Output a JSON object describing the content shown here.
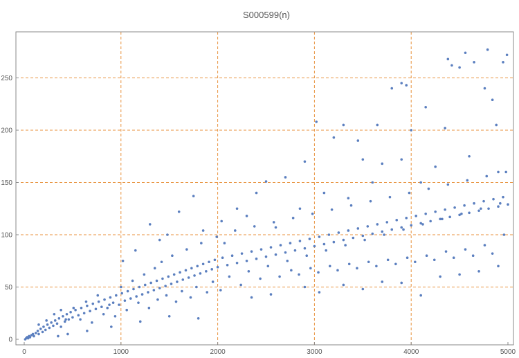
{
  "chart_data": {
    "type": "scatter",
    "title": "S000599(n)",
    "xlabel": "",
    "ylabel": "",
    "xlim": [
      0,
      5000
    ],
    "ylim": [
      0,
      280
    ],
    "x_ticks": [
      0,
      1000,
      2000,
      3000,
      4000,
      5000
    ],
    "y_ticks": [
      0,
      50,
      100,
      150,
      200,
      250
    ],
    "x_tick_labels": [
      "0",
      "1000",
      "2000",
      "3000",
      "4000",
      "5000"
    ],
    "y_tick_labels": [
      "0",
      "50",
      "100",
      "150",
      "200",
      "250"
    ],
    "grid": true,
    "grid_x": [
      1000,
      2000,
      3000,
      4000
    ],
    "grid_y": [
      50,
      100,
      150,
      200,
      250
    ],
    "colors": {
      "points": "#5b7fbf",
      "grid": "#e8923c",
      "axis": "#8a8a8a",
      "text": "#555555"
    },
    "series": [
      {
        "values": [
          [
            10,
            0
          ],
          [
            20,
            1
          ],
          [
            30,
            2
          ],
          [
            40,
            1
          ],
          [
            50,
            3
          ],
          [
            60,
            2
          ],
          [
            75,
            4
          ],
          [
            90,
            5
          ],
          [
            100,
            3
          ],
          [
            120,
            6
          ],
          [
            140,
            8
          ],
          [
            150,
            5
          ],
          [
            170,
            10
          ],
          [
            190,
            7
          ],
          [
            200,
            12
          ],
          [
            220,
            9
          ],
          [
            240,
            14
          ],
          [
            260,
            11
          ],
          [
            280,
            16
          ],
          [
            300,
            13
          ],
          [
            320,
            18
          ],
          [
            340,
            15
          ],
          [
            360,
            20
          ],
          [
            380,
            12
          ],
          [
            400,
            22
          ],
          [
            420,
            17
          ],
          [
            440,
            24
          ],
          [
            460,
            19
          ],
          [
            480,
            26
          ],
          [
            500,
            21
          ],
          [
            530,
            28
          ],
          [
            560,
            23
          ],
          [
            590,
            30
          ],
          [
            620,
            25
          ],
          [
            650,
            32
          ],
          [
            680,
            27
          ],
          [
            710,
            34
          ],
          [
            740,
            29
          ],
          [
            770,
            36
          ],
          [
            800,
            31
          ],
          [
            830,
            38
          ],
          [
            860,
            30
          ],
          [
            890,
            40
          ],
          [
            920,
            35
          ],
          [
            950,
            42
          ],
          [
            980,
            33
          ],
          [
            1010,
            44
          ],
          [
            1040,
            37
          ],
          [
            1070,
            46
          ],
          [
            1100,
            39
          ],
          [
            1130,
            48
          ],
          [
            1160,
            41
          ],
          [
            1190,
            50
          ],
          [
            1220,
            43
          ],
          [
            1250,
            52
          ],
          [
            1280,
            45
          ],
          [
            1310,
            54
          ],
          [
            1340,
            47
          ],
          [
            1370,
            56
          ],
          [
            1400,
            49
          ],
          [
            1430,
            58
          ],
          [
            1460,
            51
          ],
          [
            1490,
            60
          ],
          [
            1520,
            53
          ],
          [
            1550,
            62
          ],
          [
            1580,
            55
          ],
          [
            1610,
            64
          ],
          [
            1640,
            57
          ],
          [
            1670,
            66
          ],
          [
            1700,
            59
          ],
          [
            1730,
            68
          ],
          [
            1760,
            61
          ],
          [
            1790,
            70
          ],
          [
            1820,
            63
          ],
          [
            1850,
            72
          ],
          [
            1880,
            65
          ],
          [
            1910,
            74
          ],
          [
            1940,
            67
          ],
          [
            1970,
            76
          ],
          [
            2000,
            69
          ],
          [
            2050,
            78
          ],
          [
            2100,
            71
          ],
          [
            2150,
            80
          ],
          [
            2200,
            73
          ],
          [
            2250,
            82
          ],
          [
            2300,
            75
          ],
          [
            2350,
            84
          ],
          [
            2400,
            77
          ],
          [
            2450,
            86
          ],
          [
            2500,
            79
          ],
          [
            2550,
            88
          ],
          [
            2600,
            81
          ],
          [
            2650,
            90
          ],
          [
            2700,
            83
          ],
          [
            2750,
            92
          ],
          [
            2800,
            85
          ],
          [
            2850,
            94
          ],
          [
            2900,
            87
          ],
          [
            2950,
            96
          ],
          [
            3000,
            89
          ],
          [
            3050,
            98
          ],
          [
            3100,
            91
          ],
          [
            3150,
            100
          ],
          [
            3200,
            93
          ],
          [
            3250,
            102
          ],
          [
            3300,
            95
          ],
          [
            3350,
            104
          ],
          [
            3400,
            97
          ],
          [
            3450,
            106
          ],
          [
            3500,
            99
          ],
          [
            3550,
            108
          ],
          [
            3600,
            101
          ],
          [
            3650,
            110
          ],
          [
            3700,
            103
          ],
          [
            3750,
            112
          ],
          [
            3800,
            105
          ],
          [
            3850,
            114
          ],
          [
            3900,
            107
          ],
          [
            3950,
            116
          ],
          [
            4000,
            109
          ],
          [
            4050,
            118
          ],
          [
            4100,
            111
          ],
          [
            4150,
            120
          ],
          [
            4200,
            113
          ],
          [
            4250,
            122
          ],
          [
            4300,
            115
          ],
          [
            4350,
            124
          ],
          [
            4400,
            117
          ],
          [
            4450,
            126
          ],
          [
            4500,
            119
          ],
          [
            4550,
            128
          ],
          [
            4600,
            121
          ],
          [
            4650,
            130
          ],
          [
            4700,
            123
          ],
          [
            4750,
            132
          ],
          [
            4800,
            125
          ],
          [
            4850,
            134
          ],
          [
            4900,
            127
          ],
          [
            4950,
            136
          ],
          [
            5000,
            129
          ],
          [
            1020,
            75
          ],
          [
            1150,
            85
          ],
          [
            1400,
            95
          ],
          [
            1600,
            122
          ],
          [
            1750,
            137
          ],
          [
            2040,
            113
          ],
          [
            2200,
            125
          ],
          [
            2400,
            140
          ],
          [
            2500,
            151
          ],
          [
            2700,
            155
          ],
          [
            2900,
            170
          ],
          [
            3020,
            208
          ],
          [
            3200,
            193
          ],
          [
            3300,
            205
          ],
          [
            3450,
            190
          ],
          [
            3500,
            172
          ],
          [
            3650,
            205
          ],
          [
            3800,
            240
          ],
          [
            3900,
            245
          ],
          [
            3950,
            243
          ],
          [
            4000,
            200
          ],
          [
            4150,
            222
          ],
          [
            4350,
            202
          ],
          [
            4380,
            268
          ],
          [
            4420,
            262
          ],
          [
            4500,
            260
          ],
          [
            4560,
            274
          ],
          [
            4650,
            265
          ],
          [
            4760,
            240
          ],
          [
            4790,
            277
          ],
          [
            4840,
            229
          ],
          [
            4880,
            205
          ],
          [
            4950,
            265
          ],
          [
            4990,
            272
          ],
          [
            1300,
            110
          ],
          [
            1480,
            100
          ],
          [
            1850,
            104
          ],
          [
            2070,
            92
          ],
          [
            2300,
            118
          ],
          [
            2600,
            107
          ],
          [
            2850,
            125
          ],
          [
            3100,
            140
          ],
          [
            3350,
            135
          ],
          [
            3600,
            150
          ],
          [
            3700,
            168
          ],
          [
            3900,
            172
          ],
          [
            4100,
            150
          ],
          [
            4250,
            165
          ],
          [
            4600,
            175
          ],
          [
            4900,
            160
          ],
          [
            2350,
            40
          ],
          [
            2550,
            43
          ],
          [
            2900,
            50
          ],
          [
            3050,
            45
          ],
          [
            3300,
            52
          ],
          [
            3500,
            48
          ],
          [
            3700,
            55
          ],
          [
            3900,
            54
          ],
          [
            4100,
            42
          ],
          [
            4300,
            60
          ],
          [
            4500,
            62
          ],
          [
            4700,
            65
          ],
          [
            4900,
            70
          ],
          [
            1800,
            20
          ],
          [
            1500,
            22
          ],
          [
            1200,
            17
          ],
          [
            900,
            12
          ],
          [
            650,
            8
          ],
          [
            450,
            5
          ],
          [
            350,
            3
          ],
          [
            150,
            14
          ],
          [
            230,
            18
          ],
          [
            310,
            24
          ],
          [
            380,
            28
          ],
          [
            430,
            19
          ],
          [
            510,
            30
          ],
          [
            580,
            19
          ],
          [
            640,
            36
          ],
          [
            700,
            16
          ],
          [
            760,
            42
          ],
          [
            820,
            24
          ],
          [
            880,
            33
          ],
          [
            940,
            22
          ],
          [
            1000,
            50
          ],
          [
            1060,
            28
          ],
          [
            1120,
            56
          ],
          [
            1180,
            35
          ],
          [
            1240,
            62
          ],
          [
            1290,
            30
          ],
          [
            1350,
            68
          ],
          [
            1380,
            38
          ],
          [
            1420,
            74
          ],
          [
            1470,
            42
          ],
          [
            1530,
            80
          ],
          [
            1570,
            36
          ],
          [
            1630,
            46
          ],
          [
            1680,
            86
          ],
          [
            1720,
            40
          ],
          [
            1780,
            50
          ],
          [
            1830,
            92
          ],
          [
            1890,
            45
          ],
          [
            1950,
            55
          ],
          [
            1990,
            98
          ],
          [
            2030,
            47
          ],
          [
            2120,
            60
          ],
          [
            2180,
            104
          ],
          [
            2240,
            52
          ],
          [
            2320,
            65
          ],
          [
            2380,
            108
          ],
          [
            2440,
            58
          ],
          [
            2520,
            70
          ],
          [
            2580,
            112
          ],
          [
            2640,
            60
          ],
          [
            2720,
            75
          ],
          [
            2780,
            116
          ],
          [
            2840,
            62
          ],
          [
            2920,
            80
          ],
          [
            2980,
            120
          ],
          [
            3040,
            64
          ],
          [
            3120,
            85
          ],
          [
            3180,
            124
          ],
          [
            3240,
            66
          ],
          [
            3320,
            90
          ],
          [
            3380,
            128
          ],
          [
            3440,
            68
          ],
          [
            3520,
            95
          ],
          [
            3580,
            132
          ],
          [
            3640,
            70
          ],
          [
            3720,
            100
          ],
          [
            3780,
            136
          ],
          [
            3840,
            72
          ],
          [
            3920,
            105
          ],
          [
            3980,
            140
          ],
          [
            4040,
            74
          ],
          [
            4120,
            110
          ],
          [
            4180,
            144
          ],
          [
            4240,
            76
          ],
          [
            4320,
            115
          ],
          [
            4380,
            148
          ],
          [
            4440,
            78
          ],
          [
            4520,
            120
          ],
          [
            4580,
            152
          ],
          [
            4640,
            80
          ],
          [
            4720,
            125
          ],
          [
            4780,
            156
          ],
          [
            4840,
            82
          ],
          [
            4920,
            130
          ],
          [
            4980,
            160
          ],
          [
            4960,
            100
          ],
          [
            4760,
            90
          ],
          [
            4560,
            86
          ],
          [
            4360,
            84
          ],
          [
            4160,
            80
          ],
          [
            3960,
            78
          ],
          [
            3760,
            76
          ],
          [
            3560,
            74
          ],
          [
            3360,
            72
          ],
          [
            3160,
            70
          ],
          [
            2960,
            68
          ],
          [
            2760,
            66
          ]
        ]
      }
    ]
  }
}
